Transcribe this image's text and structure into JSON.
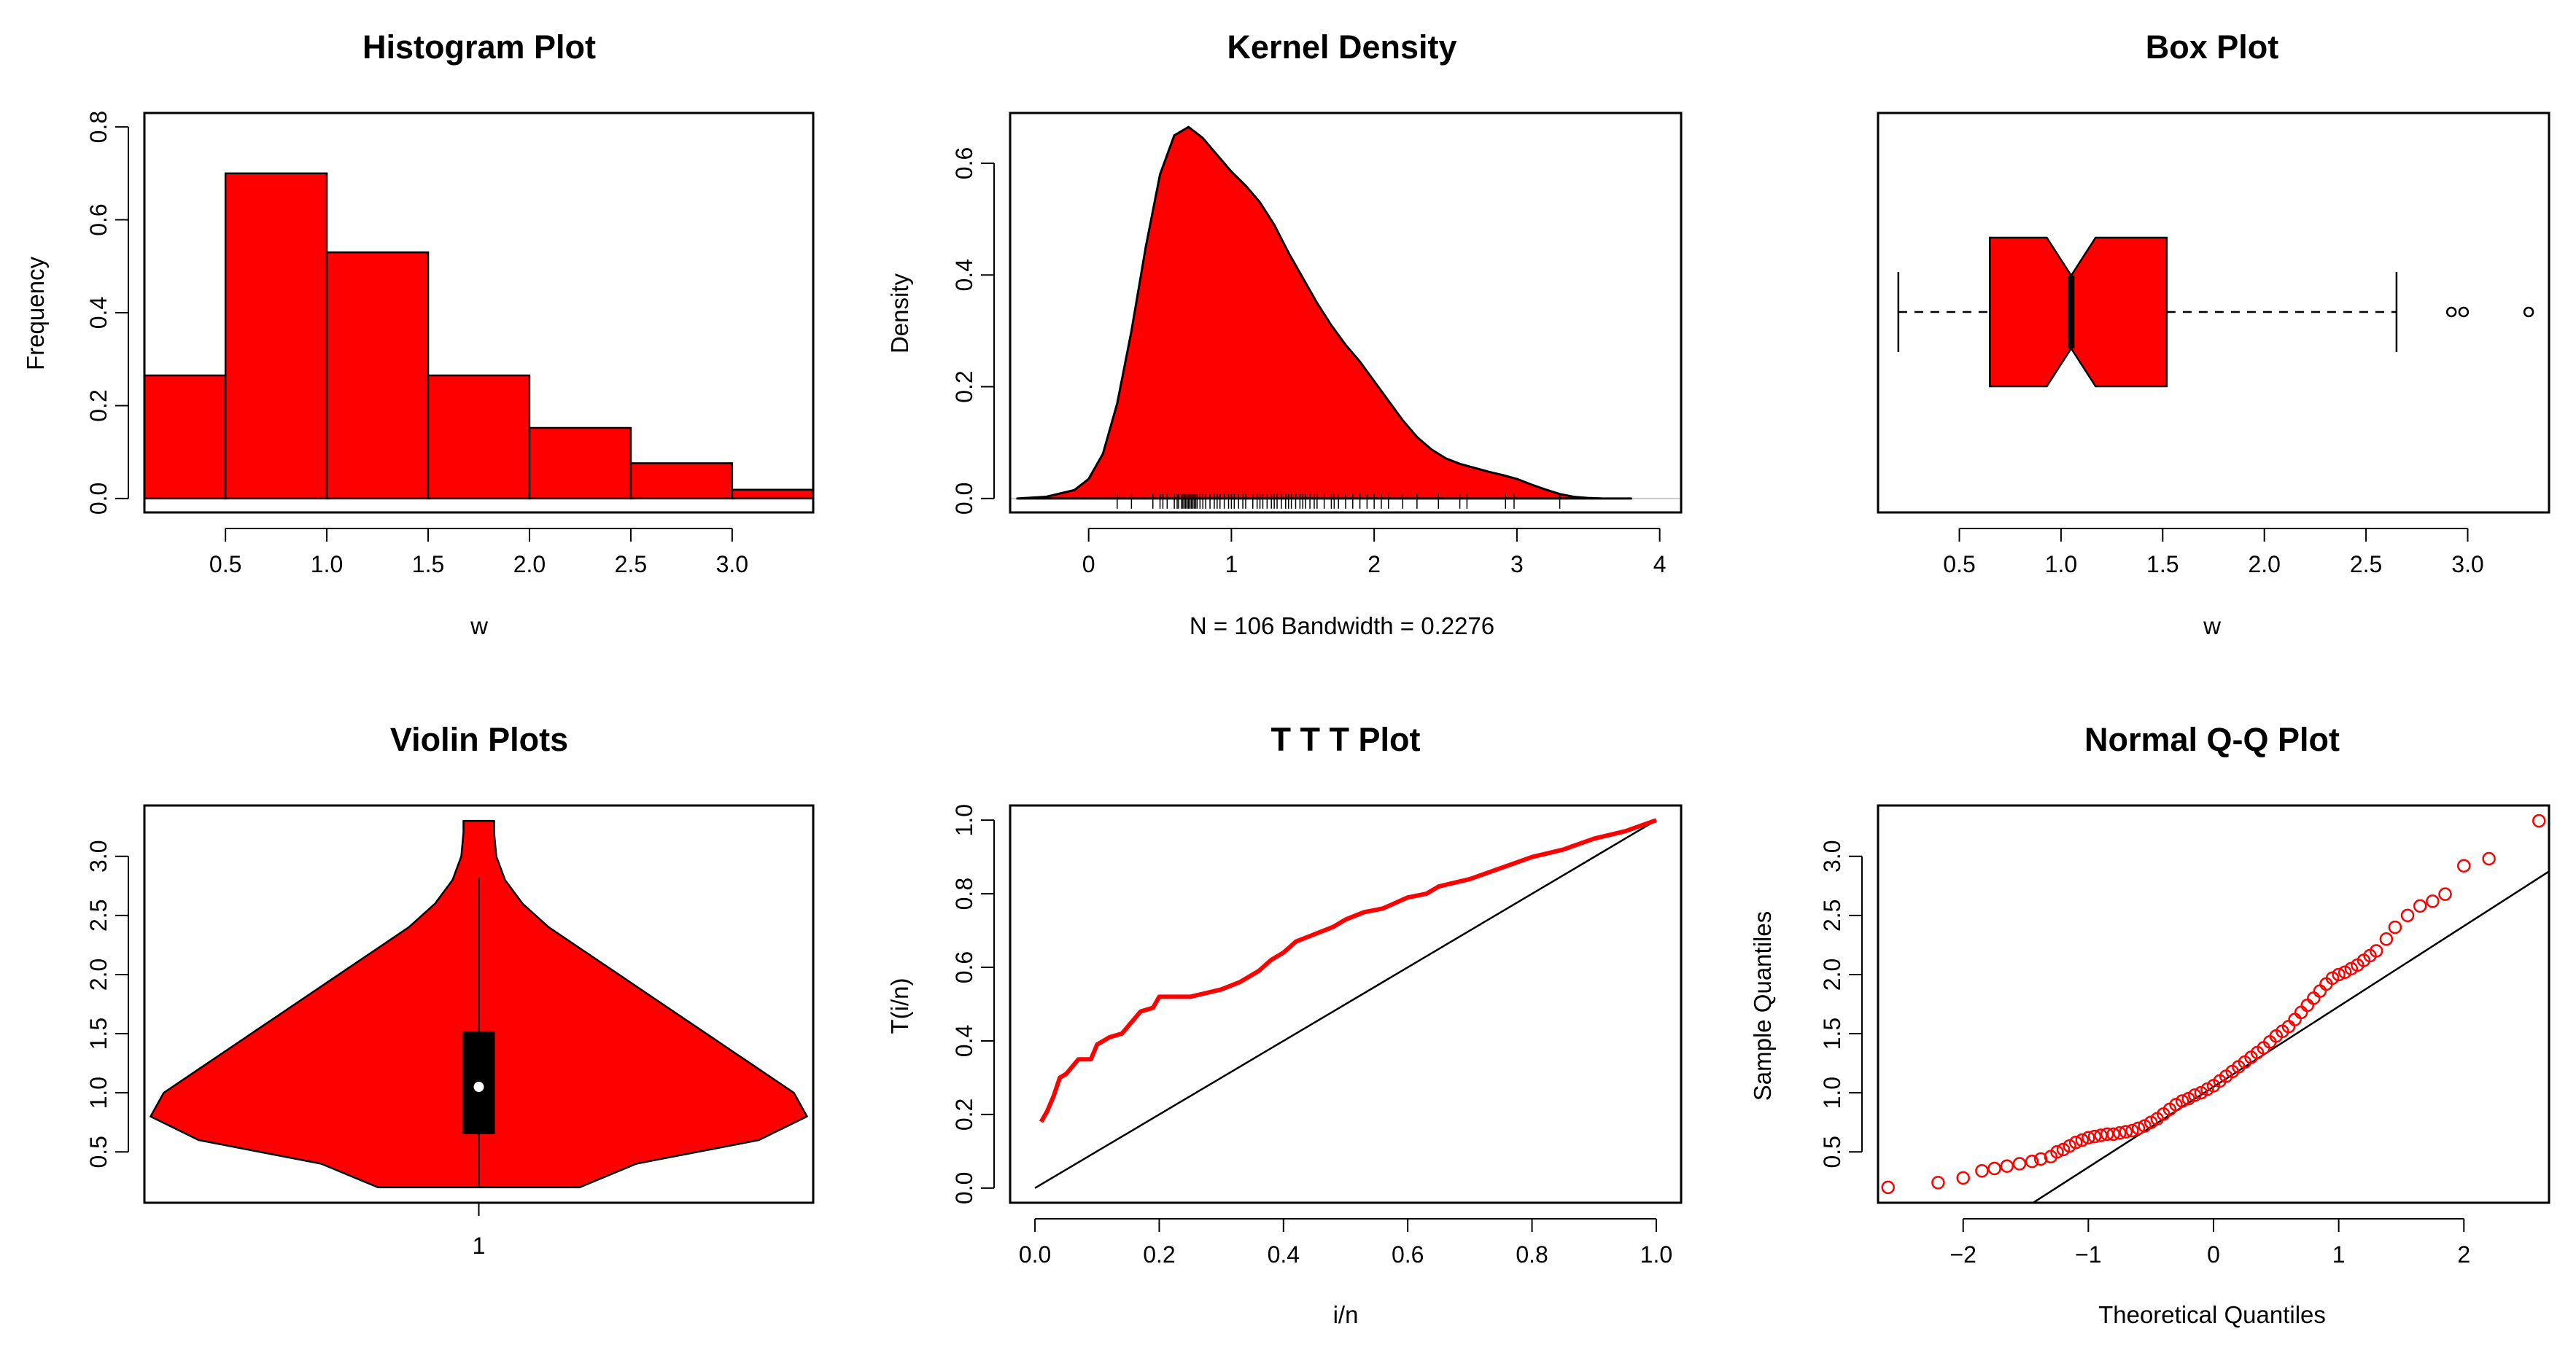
{
  "colors": {
    "fill": "#ff0000",
    "line": "#000000",
    "background": "#ffffff"
  },
  "chart_data": [
    {
      "type": "bar",
      "subtype": "histogram",
      "title": "Histogram Plot",
      "xlabel": "w",
      "ylabel": "Frequency",
      "bins": [
        {
          "from": 0.1,
          "to": 0.5,
          "value": 0.265
        },
        {
          "from": 0.5,
          "to": 1.0,
          "value": 0.7
        },
        {
          "from": 1.0,
          "to": 1.5,
          "value": 0.53
        },
        {
          "from": 1.5,
          "to": 2.0,
          "value": 0.265
        },
        {
          "from": 2.0,
          "to": 2.5,
          "value": 0.152
        },
        {
          "from": 2.5,
          "to": 3.0,
          "value": 0.076
        },
        {
          "from": 3.0,
          "to": 3.4,
          "value": 0.019
        }
      ],
      "xlim": [
        0.1,
        3.4
      ],
      "ylim": [
        -0.03,
        0.83
      ],
      "xticks": [
        "0.5",
        "1.0",
        "1.5",
        "2.0",
        "2.5",
        "3.0"
      ],
      "yticks": [
        "0.0",
        "0.2",
        "0.4",
        "0.6",
        "0.8"
      ]
    },
    {
      "type": "area",
      "subtype": "kernel-density",
      "title": "Kernel Density",
      "xlabel": "N = 106   Bandwidth = 0.2276",
      "ylabel": "Density",
      "x": [
        -0.5,
        -0.3,
        -0.1,
        0.0,
        0.1,
        0.2,
        0.3,
        0.4,
        0.5,
        0.6,
        0.7,
        0.8,
        0.9,
        1.0,
        1.1,
        1.2,
        1.3,
        1.4,
        1.5,
        1.6,
        1.7,
        1.8,
        1.9,
        2.0,
        2.1,
        2.2,
        2.3,
        2.4,
        2.5,
        2.6,
        2.7,
        2.8,
        2.9,
        3.0,
        3.1,
        3.2,
        3.3,
        3.4,
        3.5,
        3.6,
        3.7,
        3.8
      ],
      "y": [
        0.0,
        0.003,
        0.015,
        0.035,
        0.08,
        0.17,
        0.3,
        0.45,
        0.58,
        0.65,
        0.665,
        0.645,
        0.615,
        0.585,
        0.56,
        0.53,
        0.49,
        0.44,
        0.395,
        0.35,
        0.31,
        0.275,
        0.245,
        0.21,
        0.175,
        0.14,
        0.11,
        0.088,
        0.072,
        0.062,
        0.055,
        0.048,
        0.042,
        0.035,
        0.025,
        0.016,
        0.008,
        0.003,
        0.001,
        0.0,
        0.0,
        0.0
      ],
      "rug": [
        0.2,
        0.3,
        0.45,
        0.5,
        0.52,
        0.55,
        0.6,
        0.62,
        0.63,
        0.65,
        0.66,
        0.67,
        0.68,
        0.69,
        0.7,
        0.7,
        0.71,
        0.72,
        0.73,
        0.74,
        0.75,
        0.76,
        0.78,
        0.8,
        0.82,
        0.85,
        0.88,
        0.9,
        0.92,
        0.95,
        0.98,
        1.0,
        1.02,
        1.05,
        1.08,
        1.1,
        1.15,
        1.18,
        1.2,
        1.22,
        1.25,
        1.28,
        1.3,
        1.32,
        1.35,
        1.38,
        1.4,
        1.42,
        1.45,
        1.48,
        1.5,
        1.52,
        1.55,
        1.58,
        1.6,
        1.65,
        1.7,
        1.72,
        1.75,
        1.8,
        1.85,
        1.9,
        1.95,
        2.0,
        2.05,
        2.1,
        2.2,
        2.3,
        2.45,
        2.6,
        2.65,
        2.92,
        2.98,
        3.3
      ],
      "xlim": [
        -0.55,
        4.15
      ],
      "ylim": [
        -0.025,
        0.69
      ],
      "xticks": [
        "0",
        "1",
        "2",
        "3",
        "4"
      ],
      "yticks": [
        "0.0",
        "0.2",
        "0.4",
        "0.6"
      ]
    },
    {
      "type": "box",
      "title": "Box Plot",
      "xlabel": "w",
      "min": 0.2,
      "q1": 0.65,
      "median": 1.05,
      "q3": 1.52,
      "max": 2.65,
      "notch": [
        0.93,
        1.17
      ],
      "outliers": [
        2.92,
        2.98,
        3.3
      ],
      "xlim": [
        0.1,
        3.4
      ],
      "xticks": [
        "0.5",
        "1.0",
        "1.5",
        "2.0",
        "2.5",
        "3.0"
      ]
    },
    {
      "type": "violin",
      "title": "Violin Plots",
      "category": "1",
      "y_profile": [
        0.2,
        0.4,
        0.6,
        0.8,
        1.0,
        1.2,
        1.4,
        1.6,
        1.8,
        2.0,
        2.2,
        2.4,
        2.6,
        2.8,
        3.0,
        3.2,
        3.3
      ],
      "half_width": [
        0.23,
        0.36,
        0.64,
        0.75,
        0.72,
        0.64,
        0.56,
        0.48,
        0.4,
        0.32,
        0.24,
        0.16,
        0.1,
        0.06,
        0.04,
        0.035,
        0.035
      ],
      "q1": 0.65,
      "median": 1.05,
      "q3": 1.52,
      "whisker_low": 0.2,
      "whisker_high": 2.82,
      "ylim": [
        0.07,
        3.43
      ],
      "yticks": [
        "0.5",
        "1.0",
        "1.5",
        "2.0",
        "2.5",
        "3.0"
      ]
    },
    {
      "type": "line",
      "title": "T T T Plot",
      "xlabel": "i/n",
      "ylabel": "T(i/n)",
      "series": [
        {
          "name": "TTT",
          "x": [
            0.01,
            0.02,
            0.03,
            0.04,
            0.05,
            0.06,
            0.07,
            0.08,
            0.09,
            0.1,
            0.12,
            0.14,
            0.15,
            0.17,
            0.19,
            0.2,
            0.25,
            0.3,
            0.33,
            0.36,
            0.38,
            0.4,
            0.42,
            0.45,
            0.48,
            0.5,
            0.53,
            0.56,
            0.6,
            0.63,
            0.65,
            0.7,
            0.75,
            0.8,
            0.85,
            0.9,
            0.95,
            1.0
          ],
          "y": [
            0.18,
            0.21,
            0.25,
            0.3,
            0.31,
            0.33,
            0.35,
            0.35,
            0.35,
            0.39,
            0.41,
            0.42,
            0.44,
            0.48,
            0.49,
            0.52,
            0.52,
            0.54,
            0.56,
            0.59,
            0.62,
            0.64,
            0.67,
            0.69,
            0.71,
            0.73,
            0.75,
            0.76,
            0.79,
            0.8,
            0.82,
            0.84,
            0.87,
            0.9,
            0.92,
            0.95,
            0.97,
            1.0
          ]
        },
        {
          "name": "reference",
          "x": [
            0.0,
            1.0
          ],
          "y": [
            0.0,
            1.0
          ]
        }
      ],
      "xlim": [
        -0.04,
        1.04
      ],
      "ylim": [
        -0.04,
        1.04
      ],
      "xticks": [
        "0.0",
        "0.2",
        "0.4",
        "0.6",
        "0.8",
        "1.0"
      ],
      "yticks": [
        "0.0",
        "0.2",
        "0.4",
        "0.6",
        "0.8",
        "1.0"
      ]
    },
    {
      "type": "scatter",
      "title": "Normal Q-Q Plot",
      "xlabel": "Theoretical Quantiles",
      "ylabel": "Sample Quantiles",
      "points": {
        "x": [
          -2.6,
          -2.2,
          -2.0,
          -1.85,
          -1.75,
          -1.65,
          -1.55,
          -1.45,
          -1.38,
          -1.3,
          -1.25,
          -1.2,
          -1.15,
          -1.1,
          -1.05,
          -1.0,
          -0.95,
          -0.9,
          -0.85,
          -0.8,
          -0.75,
          -0.7,
          -0.65,
          -0.6,
          -0.55,
          -0.5,
          -0.45,
          -0.4,
          -0.35,
          -0.3,
          -0.25,
          -0.2,
          -0.15,
          -0.1,
          -0.05,
          0.0,
          0.05,
          0.1,
          0.15,
          0.2,
          0.25,
          0.3,
          0.35,
          0.4,
          0.45,
          0.5,
          0.55,
          0.6,
          0.65,
          0.7,
          0.75,
          0.8,
          0.85,
          0.9,
          0.95,
          1.0,
          1.05,
          1.1,
          1.15,
          1.2,
          1.25,
          1.3,
          1.38,
          1.45,
          1.55,
          1.65,
          1.75,
          1.85,
          2.0,
          2.2,
          2.6
        ],
        "y": [
          0.2,
          0.24,
          0.28,
          0.34,
          0.36,
          0.38,
          0.4,
          0.42,
          0.44,
          0.46,
          0.5,
          0.52,
          0.55,
          0.58,
          0.6,
          0.62,
          0.63,
          0.64,
          0.65,
          0.65,
          0.66,
          0.67,
          0.68,
          0.7,
          0.72,
          0.75,
          0.78,
          0.82,
          0.86,
          0.9,
          0.93,
          0.95,
          0.98,
          1.0,
          1.03,
          1.06,
          1.1,
          1.14,
          1.18,
          1.22,
          1.26,
          1.3,
          1.34,
          1.38,
          1.43,
          1.48,
          1.52,
          1.56,
          1.62,
          1.68,
          1.74,
          1.8,
          1.86,
          1.92,
          1.97,
          2.0,
          2.02,
          2.05,
          2.08,
          2.12,
          2.16,
          2.2,
          2.3,
          2.4,
          2.5,
          2.58,
          2.62,
          2.68,
          2.92,
          2.98,
          3.3
        ]
      },
      "reference_line": {
        "intercept": 1.05,
        "slope": 0.68
      },
      "xlim": [
        -2.68,
        2.68
      ],
      "ylim": [
        0.07,
        3.43
      ],
      "xticks": [
        "−2",
        "−1",
        "0",
        "1",
        "2"
      ],
      "yticks": [
        "0.5",
        "1.0",
        "1.5",
        "2.0",
        "2.5",
        "3.0"
      ]
    }
  ]
}
